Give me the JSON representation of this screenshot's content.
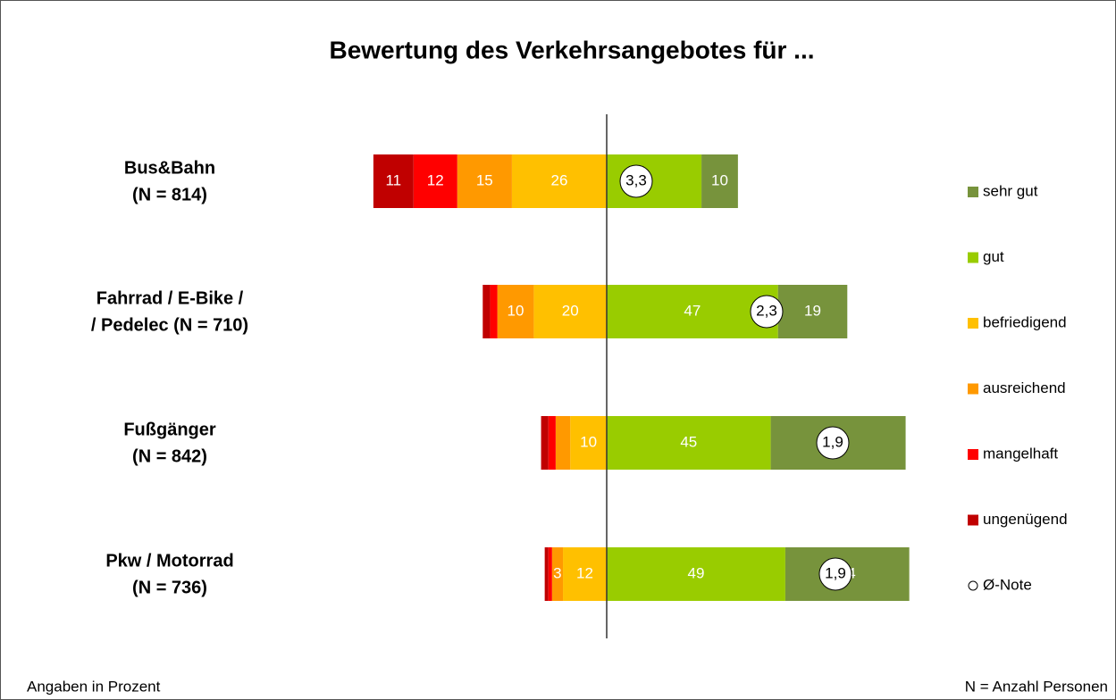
{
  "chart_data": {
    "type": "diverging_bar",
    "title": "Bewertung des Verkehrsangebotes für ...",
    "categories": [
      [
        "Bus&Bahn",
        "(N = 814)"
      ],
      [
        "Fahrrad / E-Bike /",
        "/ Pedelec (N = 710)"
      ],
      [
        "Fußgänger",
        "(N = 842)"
      ],
      [
        "Pkw / Motorrad",
        "(N = 736)"
      ]
    ],
    "series": [
      {
        "name": "ungenügend",
        "color": "#c00000",
        "values": [
          11,
          2,
          2,
          1
        ],
        "value_labels": [
          "11",
          null,
          null,
          null
        ]
      },
      {
        "name": "mangelhaft",
        "color": "#ff0000",
        "values": [
          12,
          2,
          2,
          1
        ],
        "value_labels": [
          "12",
          null,
          null,
          null
        ]
      },
      {
        "name": "ausreichend",
        "color": "#ff9900",
        "values": [
          15,
          10,
          4,
          3
        ],
        "value_labels": [
          "15",
          "10",
          null,
          "3"
        ]
      },
      {
        "name": "befriedigend",
        "color": "#ffc000",
        "values": [
          26,
          20,
          10,
          12
        ],
        "value_labels": [
          "26",
          "20",
          "10",
          "12"
        ]
      },
      {
        "name": "gut",
        "color": "#99cc00",
        "values": [
          26,
          47,
          45,
          49
        ],
        "value_labels": [
          null,
          "47",
          "45",
          "49"
        ]
      },
      {
        "name": "sehr gut",
        "color": "#77933c",
        "values": [
          10,
          19,
          37,
          34
        ],
        "value_labels": [
          "10",
          "19",
          "37",
          "34"
        ]
      }
    ],
    "average_legend": "Ø-Note",
    "averages": [
      "3,3",
      "2,3",
      "1,9",
      "1,9"
    ],
    "footnote_left": "Angaben in Prozent",
    "footnote_right": "N = Anzahl Personen"
  }
}
